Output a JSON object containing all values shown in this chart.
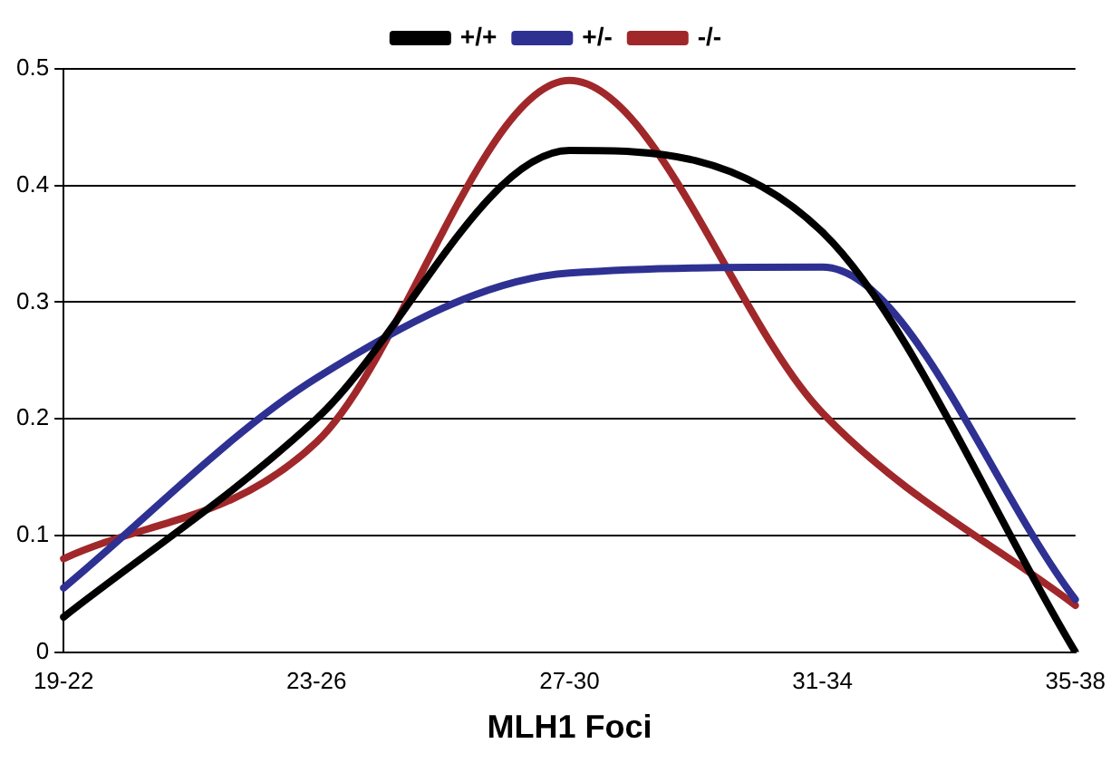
{
  "chart_data": {
    "type": "line",
    "xlabel": "MLH1 Foci",
    "categories": [
      "19-22",
      "23-26",
      "27-30",
      "31-34",
      "35-38"
    ],
    "series": [
      {
        "name": "+/+",
        "color": "#000000",
        "values": [
          0.03,
          0.2,
          0.43,
          0.36,
          0
        ]
      },
      {
        "name": "+/-",
        "color": "#2e3192",
        "values": [
          0.055,
          0.235,
          0.325,
          0.33,
          0.045
        ]
      },
      {
        "name": "-/-",
        "color": "#a0282a",
        "values": [
          0.08,
          0.18,
          0.49,
          0.205,
          0.04
        ]
      }
    ],
    "ylim": [
      0,
      0.5
    ],
    "yticks": [
      0,
      0.1,
      0.2,
      0.3,
      0.4,
      0.5
    ],
    "grid": "y",
    "legend": "top",
    "marker": "none",
    "line_style": "solid"
  }
}
